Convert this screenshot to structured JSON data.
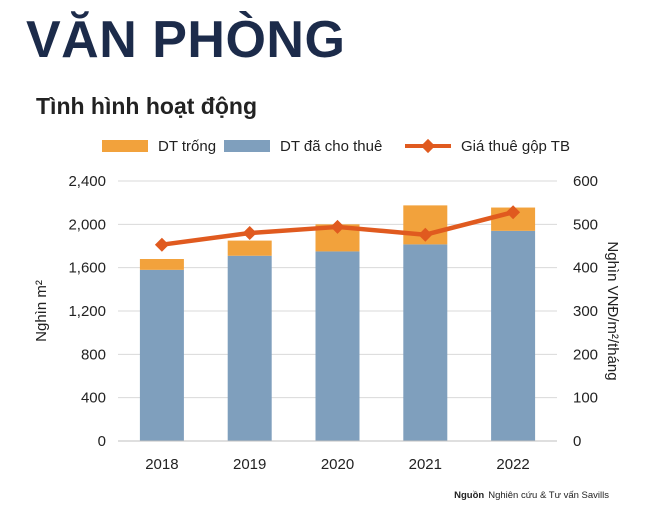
{
  "header": {
    "title": "VĂN PHÒNG",
    "subtitle": "Tình hình hoạt động"
  },
  "legend": {
    "vacant": "DT trống",
    "leased": "DT đã cho thuê",
    "rent": "Giá thuê gộp TB"
  },
  "colors": {
    "vacant": "#f2a23c",
    "leased": "#7f9fbd",
    "rent": "#e05a1f",
    "title": "#1c2b4a"
  },
  "source": {
    "label": "Nguồn",
    "text": "Nghiên cứu & Tư vấn Savills"
  },
  "chart_data": {
    "type": "bar",
    "stacked": true,
    "title": "Tình hình hoạt động",
    "categories": [
      "2018",
      "2019",
      "2020",
      "2021",
      "2022"
    ],
    "series": [
      {
        "name": "DT đã cho thuê",
        "type": "bar",
        "axis": "left",
        "values": [
          1580,
          1710,
          1750,
          1815,
          1940
        ]
      },
      {
        "name": "DT trống",
        "type": "bar",
        "axis": "left",
        "values": [
          100,
          140,
          250,
          360,
          215
        ]
      },
      {
        "name": "Giá thuê gộp TB",
        "type": "line",
        "axis": "right",
        "values": [
          453,
          480,
          494,
          476,
          528
        ]
      }
    ],
    "ylabel": "Nghìn m²",
    "y2label": "Nghìn VNĐ/m²/tháng",
    "ylim": [
      0,
      2400
    ],
    "y2lim": [
      0,
      600
    ],
    "yticks": [
      "0",
      "400",
      "800",
      "1,200",
      "1,600",
      "2,000",
      "2,400"
    ],
    "y2ticks": [
      "0",
      "100",
      "200",
      "300",
      "400",
      "500",
      "600"
    ],
    "grid": true,
    "legend_position": "top"
  }
}
